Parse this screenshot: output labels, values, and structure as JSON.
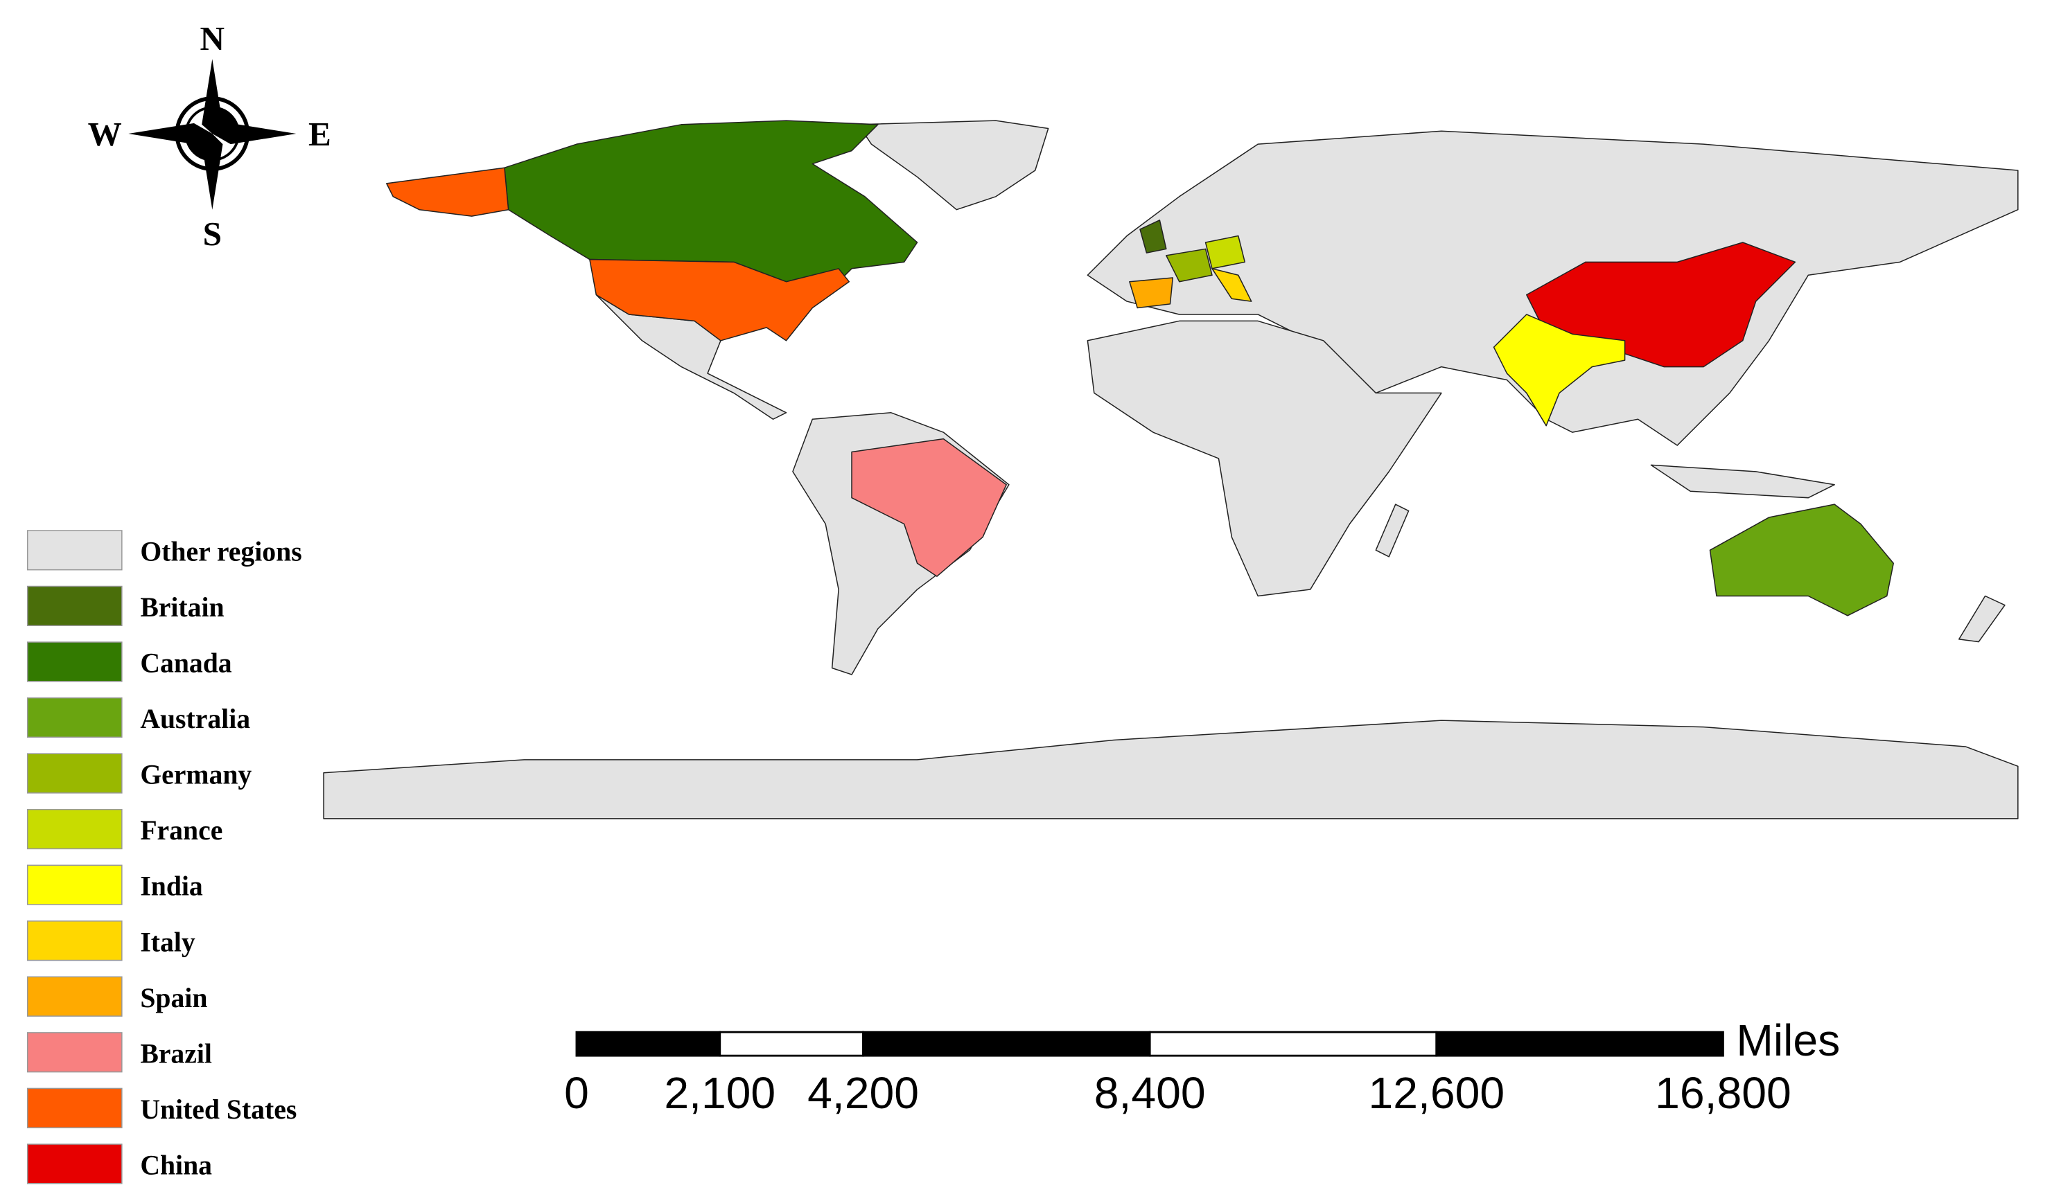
{
  "compass": {
    "north": "N",
    "south": "S",
    "west": "W",
    "east": "E"
  },
  "legend": [
    {
      "label": "Other regions",
      "color": "#e3e3e3"
    },
    {
      "label": "Britain",
      "color": "#4a6e0a"
    },
    {
      "label": "Canada",
      "color": "#337a00"
    },
    {
      "label": "Australia",
      "color": "#6aa510"
    },
    {
      "label": "Germany",
      "color": "#99b800"
    },
    {
      "label": "France",
      "color": "#c8dc00"
    },
    {
      "label": "India",
      "color": "#ffff00"
    },
    {
      "label": "Italy",
      "color": "#ffd700"
    },
    {
      "label": "Spain",
      "color": "#ffaa00"
    },
    {
      "label": "Brazil",
      "color": "#f88080"
    },
    {
      "label": "United States",
      "color": "#ff5a00"
    },
    {
      "label": "China",
      "color": "#e60000"
    }
  ],
  "scale_bar": {
    "unit": "Miles",
    "ticks": [
      0,
      {
        "value": 2100,
        "label": "2,100"
      },
      {
        "value": 4200,
        "label": "4,200"
      },
      {
        "value": 8400,
        "label": "8,400"
      },
      {
        "value": 12600,
        "label": "12,600"
      },
      {
        "value": 16800,
        "label": "16,800"
      }
    ]
  }
}
